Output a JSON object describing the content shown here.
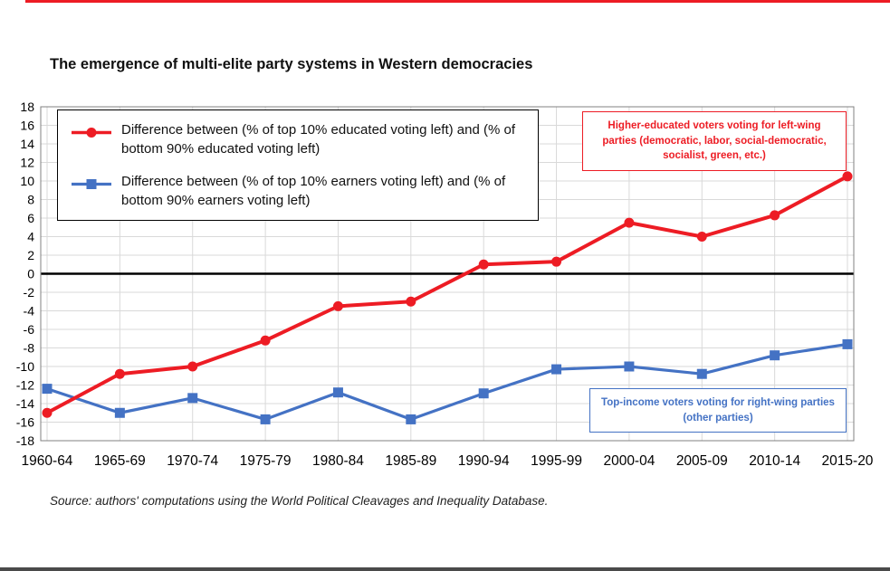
{
  "title": "The emergence of multi-elite party systems in Western democracies",
  "source": "Source: authors' computations using the World Political Cleavages and Inequality Database.",
  "legend": {
    "items": [
      {
        "id": "education-gap",
        "label": "Difference between (% of top 10% educated voting left) and (% of bottom 90% educated voting left)",
        "color": "#ed1c24",
        "marker": "circle"
      },
      {
        "id": "income-gap",
        "label": "Difference between (% of top 10% earners voting left) and (% of bottom 90% earners voting left)",
        "color": "#4472c4",
        "marker": "square"
      }
    ]
  },
  "annotations": {
    "left_wing": "Higher-educated voters voting for left-wing parties (democratic, labor, social-democratic, socialist, green, etc.)",
    "right_wing": "Top-income voters voting for right-wing parties (other parties)"
  },
  "colors": {
    "red": "#ed1c24",
    "blue": "#4472c4",
    "grid": "#d9d9d9",
    "plot_border": "#808080",
    "zero_line": "#000000",
    "top_line": "#ed1c24",
    "bottom_strip": "#4a4a4a"
  },
  "chart_data": {
    "type": "line",
    "title": "The emergence of multi-elite party systems in Western democracies",
    "categories": [
      "1960-64",
      "1965-69",
      "1970-74",
      "1975-79",
      "1980-84",
      "1985-89",
      "1990-94",
      "1995-99",
      "2000-04",
      "2005-09",
      "2010-14",
      "2015-20"
    ],
    "series": [
      {
        "id": "education-gap",
        "name": "Difference between (% of top 10% educated voting left) and (% of bottom 90% educated voting left)",
        "color": "#ed1c24",
        "marker": "circle",
        "line_width": 4,
        "values": [
          -15.0,
          -10.8,
          -10.0,
          -7.2,
          -3.5,
          -3.0,
          1.0,
          1.3,
          5.5,
          4.0,
          6.3,
          10.5
        ]
      },
      {
        "id": "income-gap",
        "name": "Difference between (% of top 10% earners voting left) and (% of bottom 90% earners voting left)",
        "color": "#4472c4",
        "marker": "square",
        "line_width": 3.2,
        "values": [
          -12.4,
          -15.0,
          -13.4,
          -15.7,
          -12.8,
          -15.7,
          -12.9,
          -10.3,
          -10.0,
          -10.8,
          -8.8,
          -7.6
        ]
      }
    ],
    "xlabel": "",
    "ylabel": "",
    "ylim": [
      -18,
      18
    ],
    "ytick_step": 2,
    "grid": true,
    "zero_line": true,
    "legend_position": "top-left"
  }
}
